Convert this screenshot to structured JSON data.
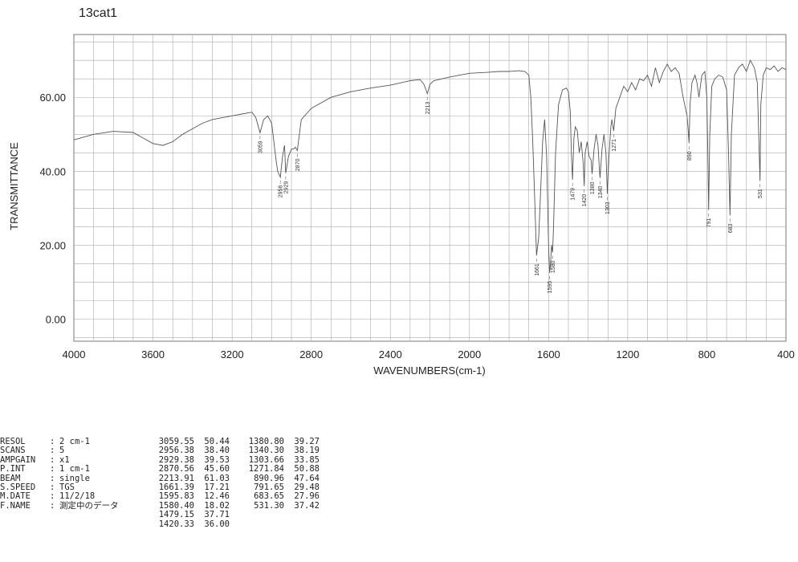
{
  "title": "13cat1",
  "params": [
    {
      "key": "RESOL",
      "value": "2 cm-1"
    },
    {
      "key": "SCANS",
      "value": "5"
    },
    {
      "key": "AMPGAIN",
      "value": "x1"
    },
    {
      "key": "P.INT",
      "value": "1 cm-1"
    },
    {
      "key": "BEAM",
      "value": "single"
    },
    {
      "key": "S.SPEED",
      "value": "TGS"
    },
    {
      "key": "M.DATE",
      "value": "11/2/18"
    },
    {
      "key": "F.NAME",
      "value": "測定中のデータ"
    }
  ],
  "peak_table": [
    {
      "wn": "3059.55",
      "t": "50.44",
      "wn2": "1380.80",
      "t2": "39.27"
    },
    {
      "wn": "2956.38",
      "t": "38.40",
      "wn2": "1340.30",
      "t2": "38.19"
    },
    {
      "wn": "2929.38",
      "t": "39.53",
      "wn2": "1303.66",
      "t2": "33.85"
    },
    {
      "wn": "2870.56",
      "t": "45.60",
      "wn2": "1271.84",
      "t2": "50.88"
    },
    {
      "wn": "2213.91",
      "t": "61.03",
      "wn2": "890.96",
      "t2": "47.64"
    },
    {
      "wn": "1661.39",
      "t": "17.21",
      "wn2": "791.65",
      "t2": "29.48"
    },
    {
      "wn": "1595.83",
      "t": "12.46",
      "wn2": "683.65",
      "t2": "27.96"
    },
    {
      "wn": "1580.40",
      "t": "18.02",
      "wn2": "531.30",
      "t2": "37.42"
    },
    {
      "wn": "1479.15",
      "t": "37.71",
      "wn2": "",
      "t2": ""
    },
    {
      "wn": "1420.33",
      "t": "36.00",
      "wn2": "",
      "t2": ""
    }
  ],
  "chart_data": {
    "type": "line",
    "xlabel": "WAVENUMBERS(cm-1)",
    "ylabel": "TRANSMITTANCE",
    "xlim": [
      4000,
      400
    ],
    "ylim": [
      -6,
      77
    ],
    "grid": true,
    "x_ticks": [
      4000,
      3600,
      3200,
      2800,
      2400,
      2000,
      1600,
      1200,
      800,
      400
    ],
    "y_ticks": [
      0,
      20,
      40,
      60
    ],
    "y_tick_labels": [
      "0.00",
      "20.00",
      "40.00",
      "60.00"
    ],
    "peak_labels": [
      {
        "x": 3059,
        "label": "3059"
      },
      {
        "x": 2956,
        "label": "2956"
      },
      {
        "x": 2929,
        "label": "2929"
      },
      {
        "x": 2870,
        "label": "2870"
      },
      {
        "x": 2213,
        "label": "2213"
      },
      {
        "x": 1661,
        "label": "1661"
      },
      {
        "x": 1595,
        "label": "1595"
      },
      {
        "x": 1580,
        "label": "1580"
      },
      {
        "x": 1479,
        "label": "1479"
      },
      {
        "x": 1420,
        "label": "1420"
      },
      {
        "x": 1380,
        "label": "1380"
      },
      {
        "x": 1340,
        "label": "1340"
      },
      {
        "x": 1303,
        "label": "1303"
      },
      {
        "x": 1271,
        "label": "1271"
      },
      {
        "x": 890,
        "label": "890"
      },
      {
        "x": 791,
        "label": "791"
      },
      {
        "x": 683,
        "label": "683"
      },
      {
        "x": 531,
        "label": "531"
      }
    ],
    "series": [
      {
        "x": [
          4000,
          3900,
          3800,
          3700,
          3650,
          3600,
          3550,
          3500,
          3450,
          3400,
          3350,
          3300,
          3250,
          3200,
          3150,
          3100,
          3080,
          3059,
          3040,
          3020,
          3000,
          2980,
          2970,
          2956,
          2945,
          2935,
          2929,
          2915,
          2900,
          2890,
          2880,
          2870,
          2860,
          2850,
          2800,
          2700,
          2600,
          2500,
          2400,
          2300,
          2250,
          2230,
          2213,
          2200,
          2180,
          2100,
          2000,
          1900,
          1850,
          1800,
          1750,
          1720,
          1700,
          1690,
          1680,
          1670,
          1661,
          1650,
          1640,
          1630,
          1620,
          1610,
          1600,
          1595,
          1590,
          1585,
          1580,
          1575,
          1565,
          1550,
          1530,
          1510,
          1500,
          1490,
          1485,
          1479,
          1472,
          1465,
          1455,
          1445,
          1435,
          1425,
          1420,
          1415,
          1405,
          1395,
          1385,
          1380,
          1370,
          1360,
          1350,
          1345,
          1340,
          1330,
          1320,
          1310,
          1303,
          1295,
          1285,
          1280,
          1271,
          1260,
          1240,
          1220,
          1200,
          1180,
          1160,
          1140,
          1120,
          1100,
          1080,
          1060,
          1040,
          1020,
          1000,
          980,
          960,
          940,
          920,
          900,
          895,
          890,
          885,
          875,
          860,
          850,
          840,
          825,
          810,
          800,
          795,
          791,
          785,
          775,
          760,
          740,
          720,
          700,
          690,
          683,
          676,
          660,
          640,
          620,
          600,
          580,
          560,
          545,
          535,
          531,
          527,
          515,
          500,
          480,
          460,
          440,
          420,
          400
        ],
        "y": [
          48.5,
          50,
          50.8,
          50.5,
          49,
          47.5,
          47,
          48,
          50,
          51.5,
          53,
          54,
          54.5,
          55,
          55.5,
          56,
          54.5,
          50.4,
          54,
          55,
          53,
          44,
          40,
          38.4,
          44,
          47,
          39.5,
          44,
          46,
          46,
          46.5,
          45.6,
          50,
          54,
          57,
          60,
          61.5,
          62.5,
          63.3,
          64.5,
          64.8,
          63.5,
          61,
          63.5,
          64.5,
          65.5,
          66.5,
          66.8,
          67,
          67,
          67.2,
          67,
          66,
          60,
          48,
          32,
          17.2,
          22,
          35,
          48,
          54,
          44,
          20,
          12.5,
          15,
          20,
          18,
          25,
          45,
          58,
          62,
          62.5,
          61.5,
          56,
          45,
          37.7,
          49,
          52,
          51,
          45,
          48,
          42,
          36,
          45,
          48,
          44,
          43,
          39.3,
          46,
          50,
          47,
          42,
          38.2,
          46,
          50,
          45,
          33.9,
          44,
          52,
          54,
          50.9,
          57,
          60,
          63,
          61.5,
          64,
          62,
          65,
          64.5,
          66,
          63,
          68,
          64,
          67,
          69,
          67,
          68,
          66.5,
          60,
          55,
          52,
          47.6,
          58,
          64,
          66,
          64,
          60,
          66,
          67,
          60,
          45,
          29.5,
          50,
          63,
          65,
          66,
          65.5,
          62,
          45,
          28,
          50,
          66,
          68,
          69,
          67,
          70,
          68,
          64,
          45,
          37.4,
          58,
          66,
          68,
          67.5,
          68.5,
          67,
          68,
          67.5
        ]
      }
    ]
  }
}
